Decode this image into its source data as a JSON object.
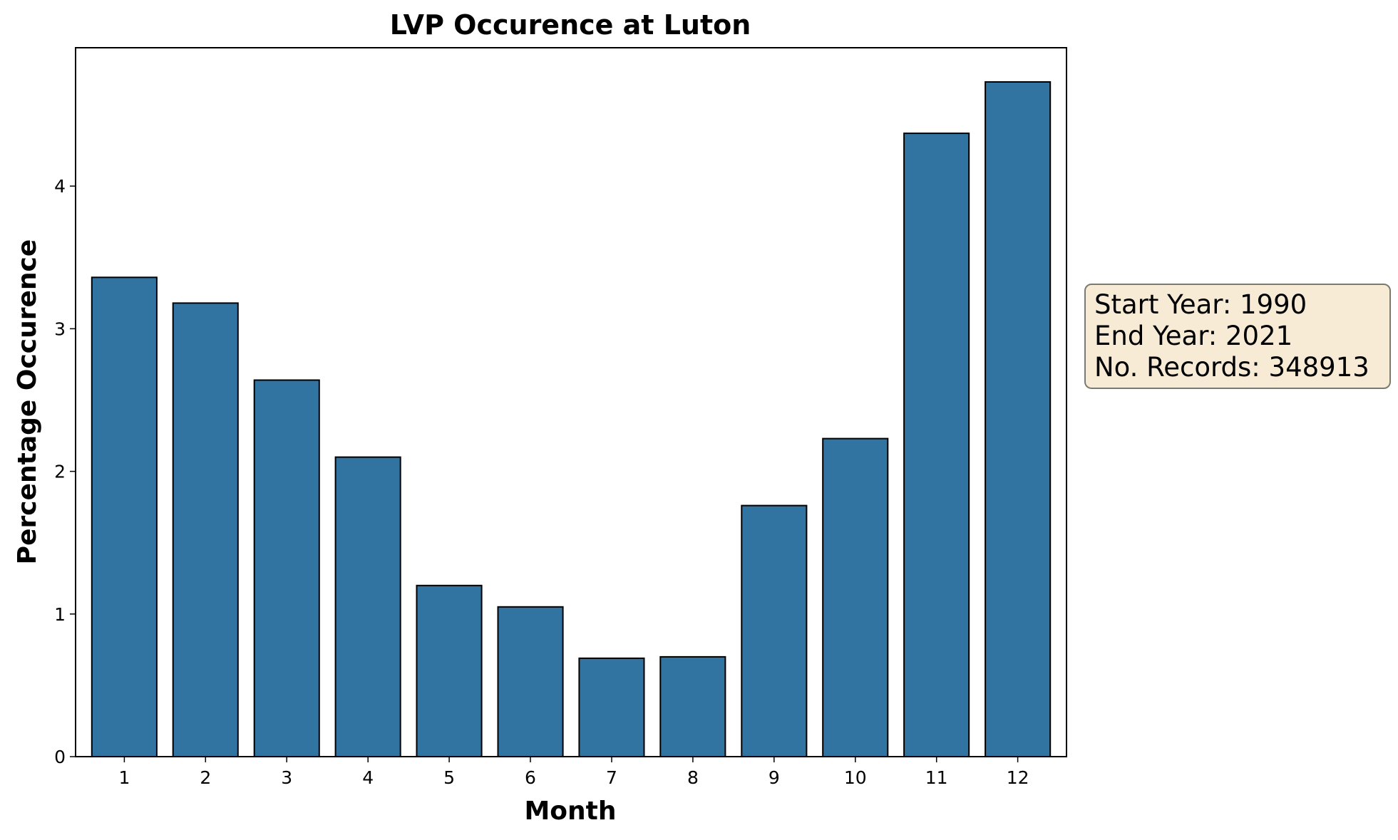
{
  "chart_data": {
    "type": "bar",
    "title": "LVP Occurence at Luton",
    "xlabel": "Month",
    "ylabel": "Percentage Occurence",
    "categories": [
      "1",
      "2",
      "3",
      "4",
      "5",
      "6",
      "7",
      "8",
      "9",
      "10",
      "11",
      "12"
    ],
    "values": [
      3.36,
      3.18,
      2.64,
      2.1,
      1.2,
      1.05,
      0.69,
      0.7,
      1.76,
      2.23,
      4.37,
      4.73
    ],
    "yticks": [
      "0",
      "1",
      "2",
      "3",
      "4"
    ],
    "ylim": [
      0,
      4.97
    ],
    "grid": false,
    "bar_color": "#3274a1",
    "bar_edge_color": "#000000"
  },
  "info_box": {
    "lines": [
      "Start Year: 1990",
      "End Year: 2021",
      "No. Records: 348913"
    ],
    "background": "#f7ebd6",
    "border": "#7a7a70"
  }
}
